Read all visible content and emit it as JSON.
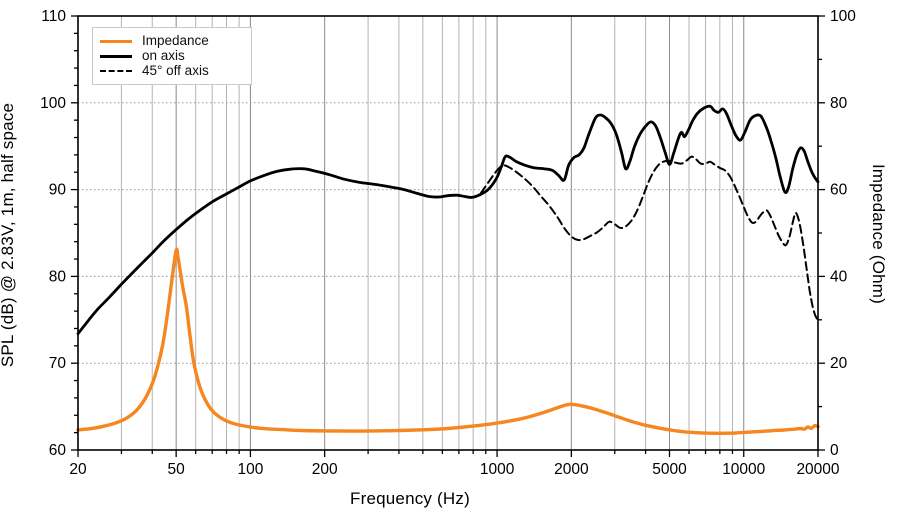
{
  "chart_data": {
    "type": "line",
    "title": "",
    "x_axis": {
      "label": "Frequency (Hz)",
      "scale": "log",
      "min": 20,
      "max": 20000,
      "labeled_ticks": [
        20,
        50,
        100,
        200,
        1000,
        2000,
        5000,
        10000,
        20000
      ],
      "gridlines": [
        30,
        40,
        50,
        60,
        70,
        80,
        90,
        100,
        200,
        300,
        400,
        500,
        600,
        700,
        800,
        900,
        1000,
        2000,
        3000,
        4000,
        5000,
        6000,
        7000,
        8000,
        9000,
        10000
      ]
    },
    "y_left": {
      "label": "SPL (dB) @ 2.83V, 1m, half space",
      "min": 60,
      "max": 110,
      "major_step": 10,
      "minor_step": 2,
      "labeled_ticks": [
        60,
        70,
        80,
        90,
        100,
        110
      ],
      "dotted_gridlines": [
        70,
        80,
        90,
        100
      ]
    },
    "y_right": {
      "label": "Impedance (Ohm)",
      "min": 0,
      "max": 100,
      "major_step": 20,
      "minor_step": 10,
      "labeled_ticks": [
        0,
        20,
        40,
        60,
        80,
        100
      ]
    },
    "legend": {
      "position": "top-left"
    },
    "colors": {
      "impedance": "#F6861F",
      "spl": "#000000",
      "grid_minor": "#b4b4b4",
      "grid_major": "#8a8a8a",
      "grid_dotted": "#999999"
    },
    "series": [
      {
        "name": "Impedance",
        "axis": "right",
        "unit": "Ohm",
        "style": "solid",
        "color": "#F6861F",
        "width": 3.4,
        "points": [
          [
            20,
            4.6
          ],
          [
            23,
            5.0
          ],
          [
            26,
            5.6
          ],
          [
            29,
            6.4
          ],
          [
            32,
            7.6
          ],
          [
            35,
            9.5
          ],
          [
            38,
            12.5
          ],
          [
            41,
            17
          ],
          [
            44,
            24
          ],
          [
            46,
            31
          ],
          [
            48,
            39
          ],
          [
            50,
            46
          ],
          [
            51,
            44
          ],
          [
            53,
            38
          ],
          [
            55,
            33
          ],
          [
            57,
            26
          ],
          [
            59,
            20
          ],
          [
            62,
            15
          ],
          [
            65,
            12
          ],
          [
            69,
            9.5
          ],
          [
            74,
            7.8
          ],
          [
            80,
            6.7
          ],
          [
            88,
            5.9
          ],
          [
            100,
            5.3
          ],
          [
            115,
            4.9
          ],
          [
            135,
            4.7
          ],
          [
            160,
            4.5
          ],
          [
            200,
            4.4
          ],
          [
            250,
            4.35
          ],
          [
            320,
            4.4
          ],
          [
            400,
            4.5
          ],
          [
            500,
            4.65
          ],
          [
            630,
            4.95
          ],
          [
            800,
            5.5
          ],
          [
            1000,
            6.2
          ],
          [
            1250,
            7.2
          ],
          [
            1500,
            8.4
          ],
          [
            1750,
            9.7
          ],
          [
            1950,
            10.5
          ],
          [
            2150,
            10.3
          ],
          [
            2500,
            9.4
          ],
          [
            3000,
            7.9
          ],
          [
            3500,
            6.6
          ],
          [
            4000,
            5.7
          ],
          [
            4600,
            5.0
          ],
          [
            5200,
            4.5
          ],
          [
            6000,
            4.1
          ],
          [
            7000,
            3.9
          ],
          [
            8000,
            3.85
          ],
          [
            9000,
            3.9
          ],
          [
            10000,
            4.05
          ],
          [
            11500,
            4.25
          ],
          [
            13000,
            4.45
          ],
          [
            14500,
            4.6
          ],
          [
            16000,
            4.8
          ],
          [
            17000,
            4.95
          ],
          [
            17600,
            4.8
          ],
          [
            18200,
            5.3
          ],
          [
            18800,
            5.0
          ],
          [
            19400,
            5.6
          ],
          [
            20000,
            5.4
          ]
        ]
      },
      {
        "name": "on axis",
        "axis": "left",
        "unit": "dB",
        "style": "solid",
        "color": "#000000",
        "width": 2.8,
        "points": [
          [
            20,
            73.4
          ],
          [
            22,
            74.9
          ],
          [
            24,
            76.2
          ],
          [
            27,
            77.7
          ],
          [
            30,
            79.1
          ],
          [
            33,
            80.3
          ],
          [
            36,
            81.4
          ],
          [
            40,
            82.7
          ],
          [
            45,
            84.2
          ],
          [
            50,
            85.4
          ],
          [
            56,
            86.6
          ],
          [
            63,
            87.7
          ],
          [
            71,
            88.7
          ],
          [
            80,
            89.5
          ],
          [
            90,
            90.3
          ],
          [
            100,
            91.0
          ],
          [
            113,
            91.6
          ],
          [
            128,
            92.1
          ],
          [
            145,
            92.35
          ],
          [
            165,
            92.4
          ],
          [
            185,
            92.1
          ],
          [
            210,
            91.7
          ],
          [
            240,
            91.2
          ],
          [
            275,
            90.85
          ],
          [
            320,
            90.6
          ],
          [
            370,
            90.3
          ],
          [
            420,
            90.0
          ],
          [
            470,
            89.6
          ],
          [
            530,
            89.2
          ],
          [
            580,
            89.15
          ],
          [
            630,
            89.3
          ],
          [
            690,
            89.35
          ],
          [
            740,
            89.2
          ],
          [
            790,
            89.1
          ],
          [
            850,
            89.4
          ],
          [
            920,
            90.0
          ],
          [
            990,
            91.2
          ],
          [
            1040,
            92.6
          ],
          [
            1080,
            93.8
          ],
          [
            1130,
            93.7
          ],
          [
            1200,
            93.2
          ],
          [
            1300,
            92.8
          ],
          [
            1420,
            92.5
          ],
          [
            1550,
            92.4
          ],
          [
            1680,
            92.2
          ],
          [
            1780,
            91.6
          ],
          [
            1870,
            91.1
          ],
          [
            1950,
            92.8
          ],
          [
            2050,
            93.7
          ],
          [
            2150,
            94.0
          ],
          [
            2250,
            94.8
          ],
          [
            2350,
            96.3
          ],
          [
            2500,
            98.2
          ],
          [
            2620,
            98.6
          ],
          [
            2750,
            98.3
          ],
          [
            2900,
            97.6
          ],
          [
            3050,
            96.3
          ],
          [
            3200,
            94.2
          ],
          [
            3320,
            92.4
          ],
          [
            3450,
            93.2
          ],
          [
            3600,
            94.9
          ],
          [
            3800,
            96.4
          ],
          [
            4000,
            97.3
          ],
          [
            4200,
            97.8
          ],
          [
            4400,
            97.3
          ],
          [
            4600,
            95.9
          ],
          [
            4800,
            94.3
          ],
          [
            5000,
            92.9
          ],
          [
            5200,
            94.2
          ],
          [
            5450,
            96.0
          ],
          [
            5600,
            96.6
          ],
          [
            5750,
            96.1
          ],
          [
            5950,
            96.8
          ],
          [
            6200,
            97.9
          ],
          [
            6500,
            98.8
          ],
          [
            6900,
            99.4
          ],
          [
            7300,
            99.6
          ],
          [
            7600,
            99.1
          ],
          [
            7900,
            98.9
          ],
          [
            8200,
            99.3
          ],
          [
            8500,
            98.8
          ],
          [
            8900,
            97.4
          ],
          [
            9300,
            96.2
          ],
          [
            9700,
            95.7
          ],
          [
            10100,
            96.6
          ],
          [
            10600,
            98.0
          ],
          [
            11100,
            98.5
          ],
          [
            11700,
            98.5
          ],
          [
            12300,
            97.3
          ],
          [
            12900,
            95.6
          ],
          [
            13500,
            93.6
          ],
          [
            14100,
            91.3
          ],
          [
            14700,
            89.7
          ],
          [
            15200,
            90.3
          ],
          [
            15800,
            92.4
          ],
          [
            16400,
            94.0
          ],
          [
            17000,
            94.8
          ],
          [
            17600,
            94.4
          ],
          [
            18200,
            93.2
          ],
          [
            18900,
            92.0
          ],
          [
            19500,
            91.3
          ],
          [
            20000,
            90.9
          ]
        ]
      },
      {
        "name": "45° off axis",
        "axis": "left",
        "unit": "dB",
        "style": "dashed",
        "color": "#000000",
        "width": 2,
        "points": [
          [
            860,
            89.6
          ],
          [
            920,
            90.8
          ],
          [
            980,
            91.9
          ],
          [
            1030,
            92.6
          ],
          [
            1070,
            92.8
          ],
          [
            1130,
            92.5
          ],
          [
            1200,
            92.0
          ],
          [
            1300,
            91.2
          ],
          [
            1400,
            90.3
          ],
          [
            1500,
            89.3
          ],
          [
            1620,
            88.2
          ],
          [
            1750,
            86.9
          ],
          [
            1880,
            85.5
          ],
          [
            2000,
            84.6
          ],
          [
            2120,
            84.2
          ],
          [
            2250,
            84.3
          ],
          [
            2400,
            84.7
          ],
          [
            2550,
            85.1
          ],
          [
            2700,
            85.7
          ],
          [
            2850,
            86.3
          ],
          [
            3000,
            86.0
          ],
          [
            3150,
            85.6
          ],
          [
            3300,
            85.7
          ],
          [
            3500,
            86.4
          ],
          [
            3700,
            87.6
          ],
          [
            3900,
            89.2
          ],
          [
            4100,
            90.8
          ],
          [
            4300,
            92.0
          ],
          [
            4500,
            92.8
          ],
          [
            4700,
            93.2
          ],
          [
            5000,
            93.3
          ],
          [
            5300,
            93.1
          ],
          [
            5600,
            93.0
          ],
          [
            5900,
            93.4
          ],
          [
            6150,
            93.8
          ],
          [
            6400,
            93.5
          ],
          [
            6700,
            93.0
          ],
          [
            7000,
            93.0
          ],
          [
            7300,
            93.2
          ],
          [
            7600,
            92.9
          ],
          [
            8000,
            92.5
          ],
          [
            8400,
            92.2
          ],
          [
            8800,
            91.5
          ],
          [
            9200,
            90.4
          ],
          [
            9600,
            89.2
          ],
          [
            10000,
            88.0
          ],
          [
            10400,
            86.9
          ],
          [
            10800,
            86.2
          ],
          [
            11200,
            86.3
          ],
          [
            11600,
            86.9
          ],
          [
            12000,
            87.4
          ],
          [
            12400,
            87.6
          ],
          [
            12800,
            87.0
          ],
          [
            13300,
            85.9
          ],
          [
            13800,
            84.8
          ],
          [
            14300,
            84.0
          ],
          [
            14800,
            83.6
          ],
          [
            15300,
            84.5
          ],
          [
            15800,
            86.2
          ],
          [
            16200,
            87.3
          ],
          [
            16600,
            86.8
          ],
          [
            17000,
            85.5
          ],
          [
            17500,
            83.3
          ],
          [
            18000,
            80.8
          ],
          [
            18500,
            78.4
          ],
          [
            19000,
            76.6
          ],
          [
            19500,
            75.5
          ],
          [
            20000,
            75.0
          ]
        ]
      }
    ]
  }
}
